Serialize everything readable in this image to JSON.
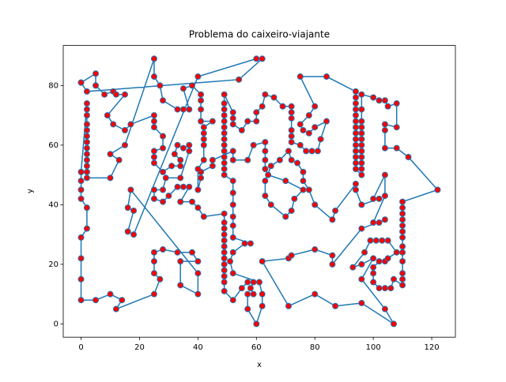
{
  "chart_data": {
    "type": "line",
    "title": "Problema do caixeiro-viajante",
    "xlabel": "x",
    "ylabel": "y",
    "xlim": [
      -6.1,
      128.1
    ],
    "ylim": [
      -4.45,
      93.45
    ],
    "xticks": [
      0,
      20,
      40,
      60,
      80,
      100,
      120
    ],
    "yticks": [
      0,
      20,
      40,
      60,
      80
    ],
    "x": [
      0,
      5,
      5,
      8,
      11,
      12,
      15,
      9,
      11,
      15,
      17,
      25,
      25,
      25,
      28,
      28,
      25,
      25,
      25,
      28,
      31,
      34,
      34,
      32,
      33,
      35,
      37,
      37,
      34,
      29,
      28,
      25,
      25,
      28,
      30,
      33,
      35,
      37,
      34,
      38,
      40,
      42,
      49,
      49,
      49,
      49,
      49,
      49,
      49,
      49,
      49,
      49,
      49,
      49,
      49,
      52,
      55,
      57,
      59,
      58,
      59,
      57,
      57,
      60,
      62,
      62,
      61,
      52,
      51,
      52,
      56,
      58,
      52,
      52,
      52,
      52,
      52,
      52,
      49,
      49,
      49,
      49,
      49,
      49,
      49,
      49,
      49,
      49,
      49,
      49,
      49,
      49,
      52,
      52,
      52,
      55,
      57,
      60,
      60,
      62,
      63,
      66,
      69,
      72,
      72,
      72,
      72,
      72,
      72,
      75,
      77,
      79,
      81,
      82,
      84,
      80,
      78,
      76,
      75,
      78,
      80,
      75,
      84,
      94,
      94,
      94,
      94,
      94,
      94,
      94,
      94,
      94,
      94,
      94,
      94,
      94,
      94,
      96,
      96,
      96,
      96,
      96,
      96,
      96,
      96,
      96,
      96,
      96,
      96,
      100,
      102,
      104,
      105,
      108,
      108,
      104,
      104,
      104,
      108,
      112,
      122,
      110,
      110,
      110,
      110,
      110,
      110,
      110,
      110,
      110,
      110,
      110,
      110,
      110,
      107,
      106,
      104,
      102,
      100,
      100,
      100,
      102,
      104,
      105,
      108,
      105,
      103,
      101,
      99,
      97,
      93,
      96,
      100,
      96,
      104,
      107,
      96,
      87,
      80,
      71,
      62,
      71,
      72,
      80,
      86,
      86,
      96,
      104,
      102,
      100,
      104,
      104,
      100,
      102,
      96,
      94,
      94,
      87,
      86,
      80,
      78,
      76,
      76,
      74,
      72,
      71,
      68,
      65,
      63,
      63,
      65,
      70,
      72,
      73,
      76,
      70,
      64,
      63,
      63,
      63,
      63,
      59,
      57,
      52,
      52,
      45,
      45,
      41,
      41,
      40,
      40,
      42,
      42,
      42,
      42,
      42,
      45,
      41,
      41,
      41,
      41,
      38,
      35,
      37,
      35,
      33,
      28,
      27,
      25,
      25,
      15,
      10,
      13,
      10,
      2,
      2,
      2,
      2,
      2,
      2,
      2,
      2,
      2,
      2,
      2,
      2,
      2,
      0,
      0,
      0,
      0,
      2,
      2,
      0,
      0,
      0,
      0,
      5,
      10,
      14,
      12,
      25,
      27,
      25,
      25,
      25,
      28,
      33,
      38,
      40,
      34,
      34,
      40,
      40,
      17,
      16,
      18,
      16,
      18,
      40,
      60,
      62,
      54,
      2,
      0
    ],
    "series": [
      {
        "color": "#1f77b4",
        "marker_color": "#ff0000",
        "values": [
          81,
          84,
          80,
          77,
          78,
          77,
          77,
          70,
          67,
          65,
          67,
          70,
          68,
          66,
          63,
          59,
          58,
          56,
          54,
          51,
          53,
          53,
          55,
          57,
          60,
          59,
          60,
          58,
          49,
          49,
          45,
          45,
          42,
          41,
          43,
          46,
          46,
          46,
          41,
          41,
          39,
          36,
          37,
          34,
          32,
          30,
          28,
          26,
          24,
          22,
          20,
          18,
          16,
          14,
          11,
          8,
          12,
          14,
          14,
          12,
          10,
          10,
          5,
          0,
          6,
          10,
          14,
          17,
          21,
          24,
          27,
          27,
          29,
          33,
          36,
          40,
          44,
          48,
          50,
          52,
          54,
          56,
          58,
          60,
          62,
          64,
          66,
          68,
          70,
          72,
          74,
          77,
          71,
          69,
          67,
          65,
          68,
          68,
          71,
          73,
          77,
          76,
          73,
          73,
          71,
          69,
          65,
          63,
          61,
          60,
          58,
          58,
          58,
          62,
          68,
          66,
          64,
          65,
          67,
          70,
          73,
          83,
          83,
          78,
          76,
          74,
          72,
          70,
          68,
          66,
          64,
          62,
          60,
          58,
          56,
          54,
          52,
          50,
          52,
          54,
          56,
          58,
          60,
          62,
          64,
          66,
          68,
          72,
          77,
          76,
          75,
          75,
          73,
          74,
          66,
          67,
          65,
          59,
          59,
          56,
          45,
          41,
          39,
          37,
          35,
          33,
          31,
          29,
          26,
          24,
          21,
          17,
          15,
          13,
          15,
          12,
          12,
          12,
          14,
          17,
          19,
          21,
          21,
          22,
          24,
          28,
          28,
          28,
          28,
          24,
          19,
          20,
          22,
          15,
          5,
          0,
          7,
          6,
          10,
          6,
          21,
          22,
          23,
          25,
          23,
          20,
          32,
          35,
          34,
          34,
          43,
          50,
          42,
          42,
          40,
          45,
          47,
          38,
          35,
          40,
          45,
          48,
          51,
          54,
          55,
          58,
          55,
          53,
          48,
          43,
          40,
          36,
          38,
          42,
          45,
          48,
          50,
          52,
          55,
          58,
          61,
          60,
          55,
          55,
          58,
          55,
          53,
          51,
          49,
          45,
          52,
          55,
          60,
          62,
          64,
          66,
          68,
          68,
          72,
          75,
          77,
          80,
          79,
          72,
          72,
          72,
          75,
          80,
          83,
          89,
          60,
          57,
          55,
          49,
          49,
          51,
          53,
          55,
          57,
          59,
          61,
          63,
          65,
          67,
          70,
          72,
          74,
          51,
          48,
          45,
          42,
          39,
          32,
          29,
          22,
          15,
          8,
          8,
          10,
          8,
          5,
          10,
          15,
          17,
          21,
          24,
          25,
          24,
          24,
          21,
          21,
          13,
          10,
          17,
          45,
          39,
          38,
          31,
          30,
          83,
          89,
          89,
          82,
          78,
          81
        ]
      }
    ]
  }
}
